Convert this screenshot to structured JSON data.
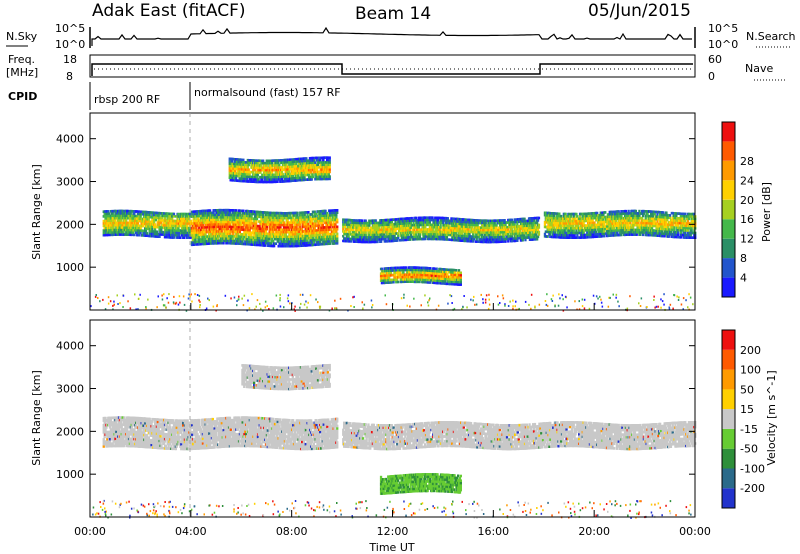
{
  "header": {
    "left_title": "Adak East (fitACF)",
    "center_title": "Beam 14",
    "right_title": "05/Jun/2015"
  },
  "strips": {
    "nsky_label": "N.Sky",
    "nsky_top_tick": "10^5",
    "nsky_bottom_tick": "10^0",
    "nsearch_label": "N.Search",
    "freq_label_line1": "Freq.",
    "freq_label_line2": "[MHz]",
    "freq_top_tick": "18",
    "freq_bottom_tick": "8",
    "nave_label": "Nave",
    "nave_top_tick": "60",
    "nave_bottom_tick": "0",
    "cpid_label": "CPID",
    "cpid_segment_1": "rbsp 200 RF",
    "cpid_segment_2": "normalsound (fast) 157 RF"
  },
  "chart_data": [
    {
      "type": "heatmap",
      "name_hint": "power",
      "ylabel": "Slant Range [km]",
      "yticks": [
        "1000",
        "2000",
        "3000",
        "4000"
      ],
      "ylim": [
        0,
        4600
      ],
      "colorbar_label": "Power [dB]",
      "colorbar_ticks": [
        "4",
        "8",
        "12",
        "16",
        "20",
        "24",
        "28"
      ],
      "colorbar_colors": [
        "#1a1aff",
        "#2255cc",
        "#2a8f66",
        "#44b84a",
        "#a6d020",
        "#ffd000",
        "#ff9a00",
        "#ff5a00",
        "#ee1010"
      ],
      "bands": [
        {
          "t_start": 0.5,
          "t_end": 4.0,
          "r_low": 1700,
          "r_high": 2300,
          "level": 0.55
        },
        {
          "t_start": 4.0,
          "t_end": 9.8,
          "r_low": 1500,
          "r_high": 2300,
          "level": 0.75
        },
        {
          "t_start": 5.5,
          "t_end": 9.5,
          "r_low": 3000,
          "r_high": 3500,
          "level": 0.6
        },
        {
          "t_start": 10.0,
          "t_end": 17.8,
          "r_low": 1600,
          "r_high": 2100,
          "level": 0.5
        },
        {
          "t_start": 11.5,
          "t_end": 14.7,
          "r_low": 600,
          "r_high": 950,
          "level": 0.7
        },
        {
          "t_start": 18.0,
          "t_end": 24.0,
          "r_low": 1700,
          "r_high": 2300,
          "level": 0.55
        }
      ]
    },
    {
      "type": "heatmap",
      "name_hint": "velocity",
      "ylabel": "Slant Range [km]",
      "yticks": [
        "1000",
        "2000",
        "3000",
        "4000"
      ],
      "ylim": [
        0,
        4600
      ],
      "xlabel": "Time UT",
      "xticks": [
        "00:00",
        "04:00",
        "08:00",
        "12:00",
        "16:00",
        "20:00",
        "00:00"
      ],
      "xlim": [
        0,
        24
      ],
      "colorbar_label": "Velocity [m s^-1]",
      "colorbar_ticks": [
        "200",
        "100",
        "50",
        "15",
        "-15",
        "-50",
        "-100",
        "-200"
      ],
      "colorbar_colors": [
        "#2233cc",
        "#2a6a8a",
        "#2e8f3a",
        "#66cc33",
        "#c8c8c8",
        "#ffd000",
        "#ff9a00",
        "#ff5a00",
        "#ee1010"
      ],
      "bands": [
        {
          "t_start": 0.5,
          "t_end": 9.8,
          "r_low": 1600,
          "r_high": 2300,
          "level": "ground"
        },
        {
          "t_start": 6.0,
          "t_end": 9.5,
          "r_low": 3000,
          "r_high": 3500,
          "level": "ground"
        },
        {
          "t_start": 10.0,
          "t_end": 24.0,
          "r_low": 1600,
          "r_high": 2200,
          "level": "ground"
        },
        {
          "t_start": 11.5,
          "t_end": 14.7,
          "r_low": 550,
          "r_high": 950,
          "level": "green"
        }
      ]
    }
  ]
}
